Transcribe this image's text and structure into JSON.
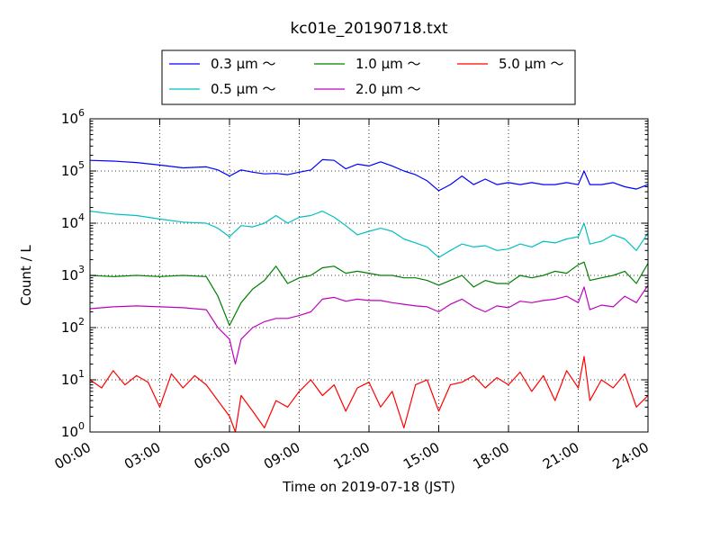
{
  "chart_data": {
    "type": "line",
    "title": "kc01e_20190718.txt",
    "xlabel": "Time on 2019-07-18 (JST)",
    "ylabel": "Count / L",
    "yscale": "log",
    "ylim": [
      1,
      1000000
    ],
    "xlim": [
      "00:00",
      "24:00"
    ],
    "grid": true,
    "legend_position": "top-center",
    "x_ticks": [
      "00:00",
      "03:00",
      "06:00",
      "09:00",
      "12:00",
      "15:00",
      "18:00",
      "21:00",
      "24:00"
    ],
    "y_ticks": [
      {
        "base": "10",
        "exp": "0",
        "value": 1
      },
      {
        "base": "10",
        "exp": "1",
        "value": 10
      },
      {
        "base": "10",
        "exp": "2",
        "value": 100
      },
      {
        "base": "10",
        "exp": "3",
        "value": 1000
      },
      {
        "base": "10",
        "exp": "4",
        "value": 10000
      },
      {
        "base": "10",
        "exp": "5",
        "value": 100000
      },
      {
        "base": "10",
        "exp": "6",
        "value": 1000000
      }
    ],
    "series": [
      {
        "name": "0.3 μm ～",
        "color": "#0000ff",
        "points": [
          [
            "00:00",
            160000
          ],
          [
            "01:00",
            155000
          ],
          [
            "02:00",
            145000
          ],
          [
            "03:00",
            130000
          ],
          [
            "04:00",
            115000
          ],
          [
            "05:00",
            120000
          ],
          [
            "05:30",
            105000
          ],
          [
            "06:00",
            80000
          ],
          [
            "06:30",
            105000
          ],
          [
            "07:00",
            95000
          ],
          [
            "07:30",
            88000
          ],
          [
            "08:00",
            90000
          ],
          [
            "08:30",
            85000
          ],
          [
            "09:00",
            95000
          ],
          [
            "09:30",
            105000
          ],
          [
            "10:00",
            165000
          ],
          [
            "10:30",
            160000
          ],
          [
            "11:00",
            110000
          ],
          [
            "11:30",
            135000
          ],
          [
            "12:00",
            125000
          ],
          [
            "12:30",
            150000
          ],
          [
            "13:00",
            125000
          ],
          [
            "13:30",
            100000
          ],
          [
            "14:00",
            85000
          ],
          [
            "14:30",
            65000
          ],
          [
            "15:00",
            42000
          ],
          [
            "15:30",
            55000
          ],
          [
            "16:00",
            80000
          ],
          [
            "16:30",
            55000
          ],
          [
            "17:00",
            70000
          ],
          [
            "17:30",
            55000
          ],
          [
            "18:00",
            60000
          ],
          [
            "18:30",
            55000
          ],
          [
            "19:00",
            60000
          ],
          [
            "19:30",
            55000
          ],
          [
            "20:00",
            55000
          ],
          [
            "20:30",
            60000
          ],
          [
            "21:00",
            55000
          ],
          [
            "21:15",
            100000
          ],
          [
            "21:30",
            55000
          ],
          [
            "22:00",
            55000
          ],
          [
            "22:30",
            60000
          ],
          [
            "23:00",
            50000
          ],
          [
            "23:30",
            45000
          ],
          [
            "24:00",
            55000
          ]
        ]
      },
      {
        "name": "0.5 μm ～",
        "color": "#00bfbf",
        "points": [
          [
            "00:00",
            17000
          ],
          [
            "01:00",
            15000
          ],
          [
            "02:00",
            14000
          ],
          [
            "03:00",
            12000
          ],
          [
            "04:00",
            10500
          ],
          [
            "05:00",
            10000
          ],
          [
            "05:30",
            8000
          ],
          [
            "06:00",
            5500
          ],
          [
            "06:30",
            9000
          ],
          [
            "07:00",
            8500
          ],
          [
            "07:30",
            10000
          ],
          [
            "08:00",
            14000
          ],
          [
            "08:30",
            10000
          ],
          [
            "09:00",
            13000
          ],
          [
            "09:30",
            14000
          ],
          [
            "10:00",
            17000
          ],
          [
            "10:30",
            13000
          ],
          [
            "11:00",
            9000
          ],
          [
            "11:30",
            6000
          ],
          [
            "12:00",
            7000
          ],
          [
            "12:30",
            8000
          ],
          [
            "13:00",
            7000
          ],
          [
            "13:30",
            5000
          ],
          [
            "14:00",
            4200
          ],
          [
            "14:30",
            3500
          ],
          [
            "15:00",
            2200
          ],
          [
            "15:30",
            3000
          ],
          [
            "16:00",
            4000
          ],
          [
            "16:30",
            3500
          ],
          [
            "17:00",
            3700
          ],
          [
            "17:30",
            3000
          ],
          [
            "18:00",
            3200
          ],
          [
            "18:30",
            4000
          ],
          [
            "19:00",
            3500
          ],
          [
            "19:30",
            4500
          ],
          [
            "20:00",
            4200
          ],
          [
            "20:30",
            5000
          ],
          [
            "21:00",
            5500
          ],
          [
            "21:15",
            10000
          ],
          [
            "21:30",
            4000
          ],
          [
            "22:00",
            4500
          ],
          [
            "22:30",
            6000
          ],
          [
            "23:00",
            5000
          ],
          [
            "23:30",
            3000
          ],
          [
            "24:00",
            6500
          ]
        ]
      },
      {
        "name": "1.0 μm ～",
        "color": "#008000",
        "points": [
          [
            "00:00",
            1000
          ],
          [
            "01:00",
            950
          ],
          [
            "02:00",
            1000
          ],
          [
            "03:00",
            950
          ],
          [
            "04:00",
            1000
          ],
          [
            "05:00",
            950
          ],
          [
            "05:30",
            400
          ],
          [
            "06:00",
            110
          ],
          [
            "06:30",
            300
          ],
          [
            "07:00",
            550
          ],
          [
            "07:30",
            800
          ],
          [
            "08:00",
            1500
          ],
          [
            "08:30",
            700
          ],
          [
            "09:00",
            900
          ],
          [
            "09:30",
            1000
          ],
          [
            "10:00",
            1400
          ],
          [
            "10:30",
            1500
          ],
          [
            "11:00",
            1100
          ],
          [
            "11:30",
            1200
          ],
          [
            "12:00",
            1100
          ],
          [
            "12:30",
            1000
          ],
          [
            "13:00",
            1000
          ],
          [
            "13:30",
            900
          ],
          [
            "14:00",
            900
          ],
          [
            "14:30",
            800
          ],
          [
            "15:00",
            650
          ],
          [
            "15:30",
            800
          ],
          [
            "16:00",
            1000
          ],
          [
            "16:30",
            600
          ],
          [
            "17:00",
            800
          ],
          [
            "17:30",
            700
          ],
          [
            "18:00",
            700
          ],
          [
            "18:30",
            1000
          ],
          [
            "19:00",
            900
          ],
          [
            "19:30",
            1000
          ],
          [
            "20:00",
            1200
          ],
          [
            "20:30",
            1100
          ],
          [
            "21:00",
            1600
          ],
          [
            "21:15",
            1800
          ],
          [
            "21:30",
            800
          ],
          [
            "22:00",
            900
          ],
          [
            "22:30",
            1000
          ],
          [
            "23:00",
            1200
          ],
          [
            "23:30",
            700
          ],
          [
            "24:00",
            1700
          ]
        ]
      },
      {
        "name": "2.0 μm ～",
        "color": "#bf00bf",
        "points": [
          [
            "00:00",
            230
          ],
          [
            "01:00",
            250
          ],
          [
            "02:00",
            260
          ],
          [
            "03:00",
            250
          ],
          [
            "04:00",
            240
          ],
          [
            "05:00",
            220
          ],
          [
            "05:30",
            100
          ],
          [
            "06:00",
            60
          ],
          [
            "06:15",
            20
          ],
          [
            "06:30",
            60
          ],
          [
            "07:00",
            100
          ],
          [
            "07:30",
            130
          ],
          [
            "08:00",
            150
          ],
          [
            "08:30",
            150
          ],
          [
            "09:00",
            170
          ],
          [
            "09:30",
            200
          ],
          [
            "10:00",
            350
          ],
          [
            "10:30",
            380
          ],
          [
            "11:00",
            320
          ],
          [
            "11:30",
            350
          ],
          [
            "12:00",
            330
          ],
          [
            "12:30",
            330
          ],
          [
            "13:00",
            300
          ],
          [
            "13:30",
            280
          ],
          [
            "14:00",
            260
          ],
          [
            "14:30",
            250
          ],
          [
            "15:00",
            200
          ],
          [
            "15:30",
            280
          ],
          [
            "16:00",
            350
          ],
          [
            "16:30",
            250
          ],
          [
            "17:00",
            200
          ],
          [
            "17:30",
            260
          ],
          [
            "18:00",
            240
          ],
          [
            "18:30",
            320
          ],
          [
            "19:00",
            300
          ],
          [
            "19:30",
            330
          ],
          [
            "20:00",
            350
          ],
          [
            "20:30",
            400
          ],
          [
            "21:00",
            300
          ],
          [
            "21:15",
            600
          ],
          [
            "21:30",
            220
          ],
          [
            "22:00",
            270
          ],
          [
            "22:30",
            250
          ],
          [
            "23:00",
            400
          ],
          [
            "23:30",
            300
          ],
          [
            "24:00",
            650
          ]
        ]
      },
      {
        "name": "5.0 μm ～",
        "color": "#ff0000",
        "points": [
          [
            "00:00",
            10
          ],
          [
            "00:30",
            7
          ],
          [
            "01:00",
            15
          ],
          [
            "01:30",
            8
          ],
          [
            "02:00",
            12
          ],
          [
            "02:30",
            9
          ],
          [
            "03:00",
            3
          ],
          [
            "03:30",
            13
          ],
          [
            "04:00",
            7
          ],
          [
            "04:30",
            12
          ],
          [
            "05:00",
            8
          ],
          [
            "05:30",
            4
          ],
          [
            "06:00",
            2
          ],
          [
            "06:15",
            0.9
          ],
          [
            "06:30",
            5
          ],
          [
            "07:00",
            2.5
          ],
          [
            "07:30",
            1.2
          ],
          [
            "08:00",
            4
          ],
          [
            "08:30",
            3
          ],
          [
            "09:00",
            6
          ],
          [
            "09:30",
            10
          ],
          [
            "10:00",
            5
          ],
          [
            "10:30",
            8
          ],
          [
            "11:00",
            2.5
          ],
          [
            "11:30",
            7
          ],
          [
            "12:00",
            9
          ],
          [
            "12:30",
            3
          ],
          [
            "13:00",
            6
          ],
          [
            "13:30",
            1.2
          ],
          [
            "14:00",
            8
          ],
          [
            "14:30",
            10
          ],
          [
            "15:00",
            2.5
          ],
          [
            "15:30",
            8
          ],
          [
            "16:00",
            9
          ],
          [
            "16:30",
            12
          ],
          [
            "17:00",
            7
          ],
          [
            "17:30",
            11
          ],
          [
            "18:00",
            8
          ],
          [
            "18:30",
            14
          ],
          [
            "19:00",
            6
          ],
          [
            "19:30",
            12
          ],
          [
            "20:00",
            4
          ],
          [
            "20:30",
            15
          ],
          [
            "21:00",
            7
          ],
          [
            "21:15",
            28
          ],
          [
            "21:30",
            4
          ],
          [
            "22:00",
            10
          ],
          [
            "22:30",
            7
          ],
          [
            "23:00",
            13
          ],
          [
            "23:30",
            3
          ],
          [
            "24:00",
            5
          ]
        ]
      }
    ]
  }
}
